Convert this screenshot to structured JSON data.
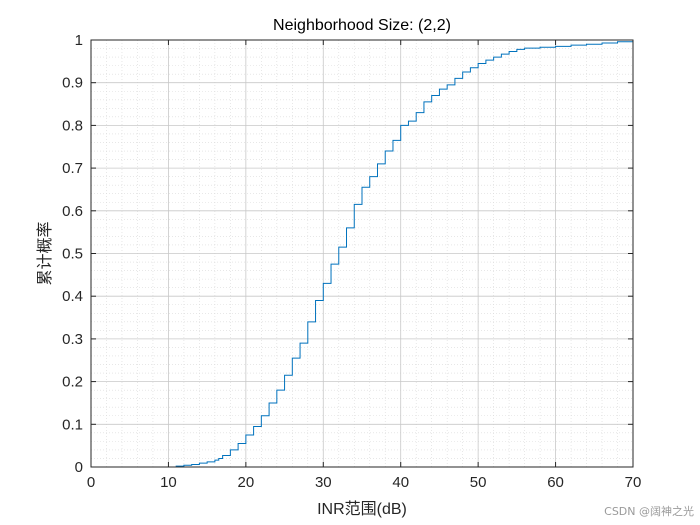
{
  "chart_data": {
    "type": "line",
    "title": "Neighborhood Size: (2,2)",
    "xlabel": "INR范围(dB)",
    "ylabel": "累计概率",
    "xlim": [
      0,
      70
    ],
    "ylim": [
      0,
      1
    ],
    "xticks": [
      0,
      10,
      20,
      30,
      40,
      50,
      60,
      70
    ],
    "yticks": [
      0,
      0.1,
      0.2,
      0.3,
      0.4,
      0.5,
      0.6,
      0.7,
      0.8,
      0.9,
      1
    ],
    "grid": true,
    "minor_grid": true,
    "line_color": "#0072BD",
    "series": [
      {
        "x": [
          10,
          11,
          12,
          13,
          14,
          15,
          16,
          16.5,
          17,
          18,
          19,
          20,
          21,
          22,
          23,
          24,
          25,
          26,
          27,
          28,
          29,
          30,
          31,
          32,
          33,
          34,
          35,
          36,
          37,
          38,
          39,
          40,
          41,
          42,
          43,
          44,
          45,
          46,
          47,
          48,
          49,
          50,
          51,
          52,
          53,
          54,
          55,
          56,
          58,
          60,
          62,
          64,
          66,
          68,
          70
        ],
        "y": [
          0.0,
          0.002,
          0.004,
          0.006,
          0.009,
          0.012,
          0.016,
          0.02,
          0.027,
          0.04,
          0.055,
          0.075,
          0.095,
          0.12,
          0.15,
          0.18,
          0.215,
          0.255,
          0.29,
          0.34,
          0.39,
          0.43,
          0.475,
          0.515,
          0.56,
          0.615,
          0.655,
          0.68,
          0.71,
          0.74,
          0.765,
          0.8,
          0.81,
          0.83,
          0.855,
          0.87,
          0.885,
          0.895,
          0.91,
          0.925,
          0.935,
          0.945,
          0.953,
          0.96,
          0.967,
          0.973,
          0.978,
          0.981,
          0.983,
          0.985,
          0.988,
          0.99,
          0.993,
          0.996,
          1.0
        ]
      }
    ]
  },
  "watermark": "CSDN @阔神之光"
}
